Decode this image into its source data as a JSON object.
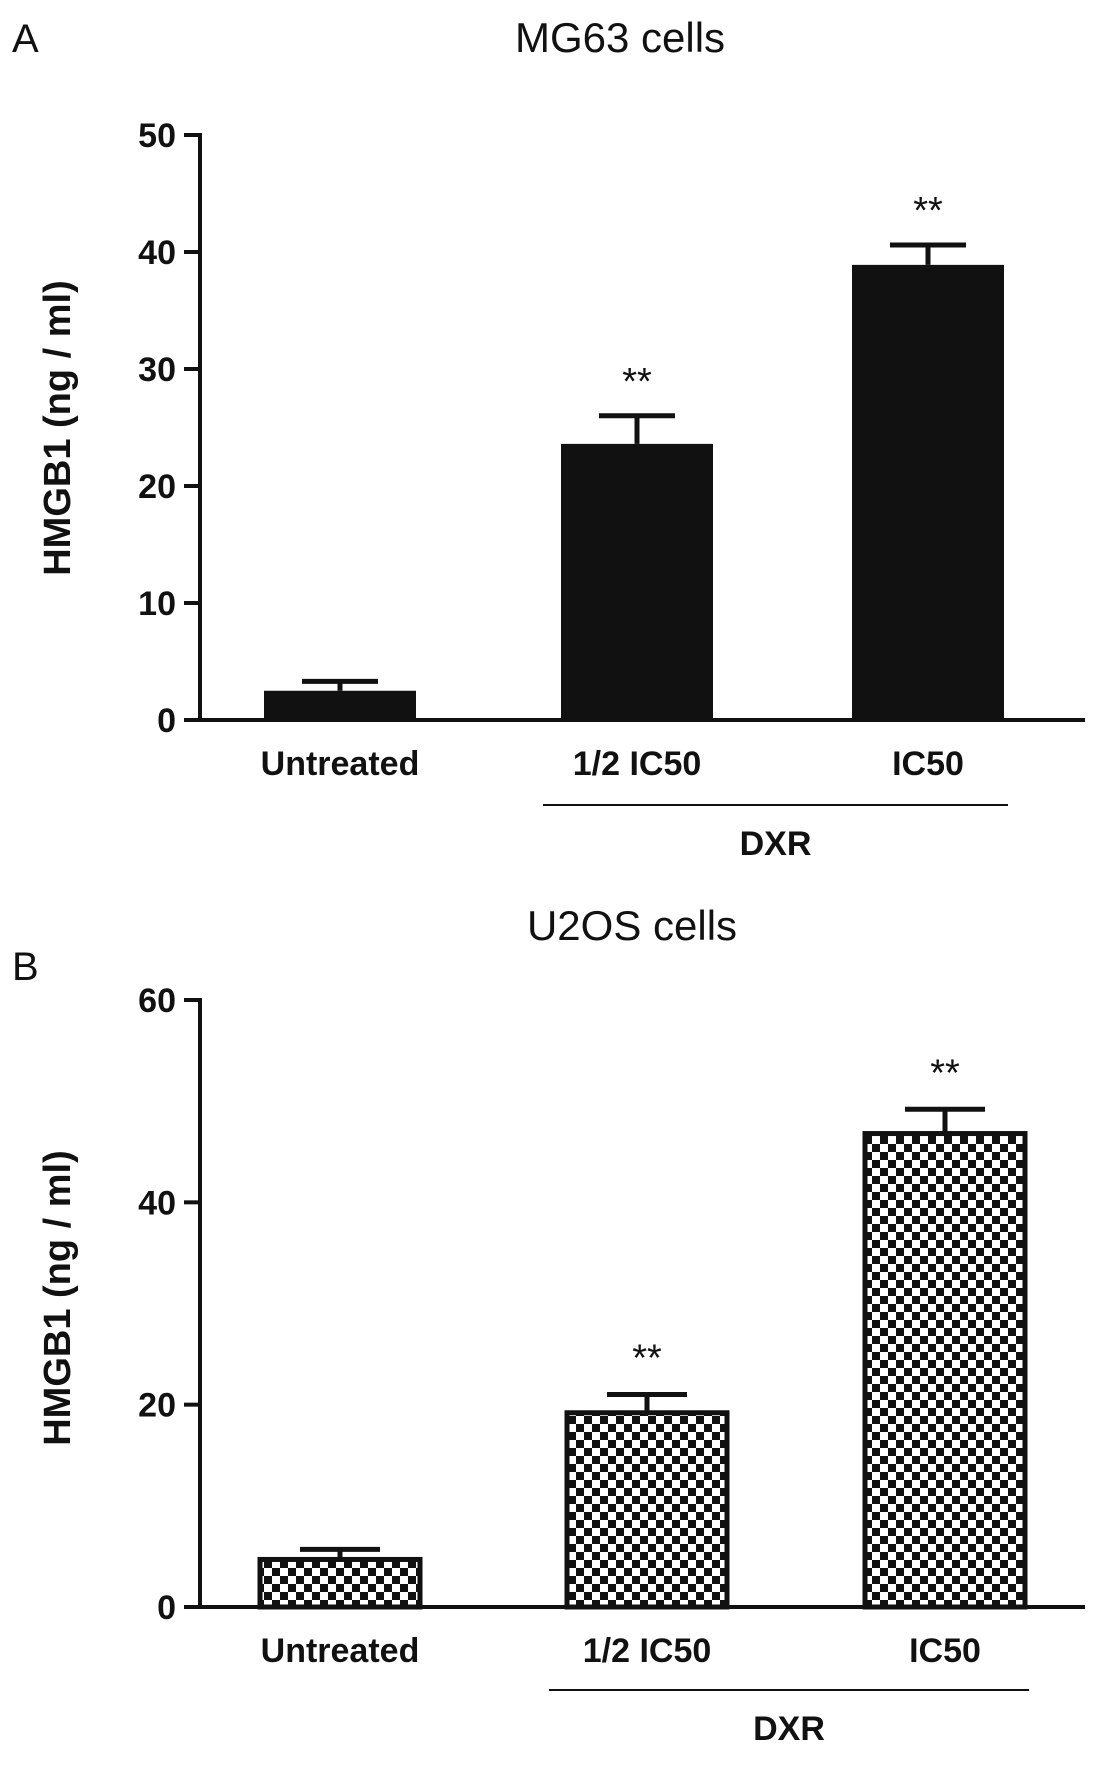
{
  "chart_data": [
    {
      "panel": "A",
      "type": "bar",
      "title": "MG63 cells",
      "xlabel": "",
      "ylabel": "HMGB1 (ng / ml)",
      "categories": [
        "Untreated",
        "1/2 IC50",
        "IC50"
      ],
      "values": [
        2.5,
        23.6,
        38.9
      ],
      "errors": [
        0.8,
        2.4,
        1.7
      ],
      "significance": [
        "",
        "**",
        "**"
      ],
      "ylim": [
        0,
        50
      ],
      "yticks": [
        0,
        10,
        20,
        30,
        40,
        50
      ],
      "bar_fill": "#111111",
      "pattern": "solid",
      "group": {
        "label": "DXR",
        "categories": [
          "1/2 IC50",
          "IC50"
        ]
      }
    },
    {
      "panel": "B",
      "type": "bar",
      "title": "U2OS cells",
      "xlabel": "",
      "ylabel": "HMGB1 (ng / ml)",
      "categories": [
        "Untreated",
        "1/2 IC50",
        "IC50"
      ],
      "values": [
        4.7,
        19.2,
        46.8
      ],
      "errors": [
        1.0,
        1.8,
        2.4
      ],
      "significance": [
        "",
        "**",
        "**"
      ],
      "ylim": [
        0,
        60
      ],
      "yticks": [
        0,
        20,
        40,
        60
      ],
      "bar_fill": "#111111",
      "pattern": "checkerboard",
      "group": {
        "label": "DXR",
        "categories": [
          "1/2 IC50",
          "IC50"
        ]
      }
    }
  ]
}
